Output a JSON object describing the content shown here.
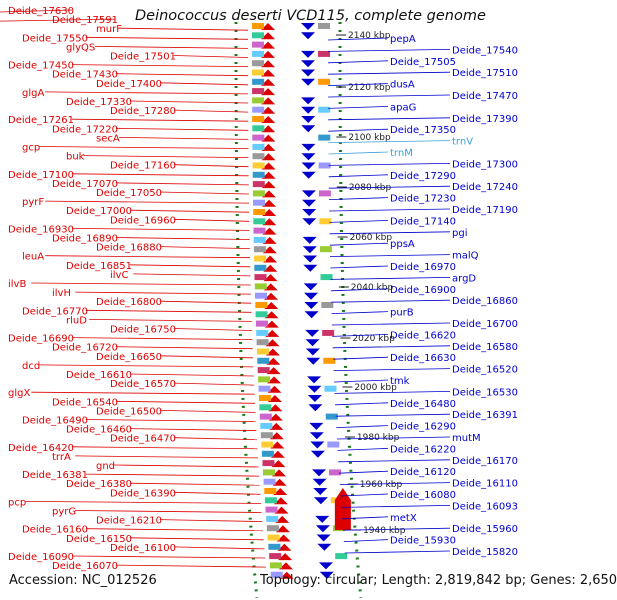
{
  "title": "Deinococcus deserti VCD115, complete genome",
  "footer": {
    "accession": "Accession: NC_012526",
    "topology": "Topology: circular; Length: 2,819,842 bp; Genes: 2,650"
  },
  "colors": {
    "forward": "#dd0000",
    "reverse": "#0000cc",
    "rna": "#3aa0d8",
    "ticks": "#1a7a1a"
  },
  "ticks": [
    "2140 kbp",
    "2120 kbp",
    "2100 kbp",
    "2080 kbp",
    "2060 kbp",
    "2040 kbp",
    "2020 kbp",
    "2000 kbp",
    "1980 kbp",
    "1960 kbp",
    "1940 kbp"
  ],
  "left_labels": [
    "Deide_17630",
    "Deide_17591",
    "murF",
    "Deide_17550",
    "glyQS",
    "Deide_17501",
    "Deide_17450",
    "Deide_17430",
    "Deide_17400",
    "glgA",
    "Deide_17330",
    "Deide_17280",
    "Deide_17261",
    "Deide_17220",
    "secA",
    "gcp",
    "buk",
    "Deide_17160",
    "Deide_17100",
    "Deide_17070",
    "Deide_17050",
    "pyrF",
    "Deide_17000",
    "Deide_16960",
    "Deide_16930",
    "Deide_16890",
    "Deide_16880",
    "leuA",
    "Deide_16851",
    "ilvC",
    "ilvB",
    "ilvH",
    "Deide_16800",
    "Deide_16770",
    "rluD",
    "Deide_16750",
    "Deide_16690",
    "Deide_16720",
    "Deide_16650",
    "dcd",
    "Deide_16610",
    "Deide_16570",
    "glgX",
    "Deide_16540",
    "Deide_16500",
    "Deide_16490",
    "Deide_16460",
    "Deide_16470",
    "Deide_16420",
    "trrA",
    "gnd",
    "Deide_16381",
    "Deide_16380",
    "Deide_16390",
    "pcp",
    "pyrG",
    "Deide_16210",
    "Deide_16160",
    "Deide_16150",
    "Deide_16100",
    "Deide_16090",
    "Deide_16070"
  ],
  "right_labels": [
    "pepA",
    "Deide_17540",
    "Deide_17505",
    "Deide_17510",
    "dusA",
    "Deide_17470",
    "apaG",
    "Deide_17390",
    "Deide_17350",
    "trnV",
    "trnM",
    "Deide_17300",
    "Deide_17290",
    "Deide_17240",
    "Deide_17230",
    "Deide_17190",
    "Deide_17140",
    "pgi",
    "ppsA",
    "malQ",
    "Deide_16970",
    "argD",
    "Deide_16900",
    "Deide_16860",
    "purB",
    "Deide_16700",
    "Deide_16620",
    "Deide_16580",
    "Deide_16630",
    "Deide_16520",
    "tmk",
    "Deide_16530",
    "Deide_16480",
    "Deide_16391",
    "Deide_16290",
    "mutM",
    "Deide_16220",
    "Deide_16170",
    "Deide_16120",
    "Deide_16110",
    "Deide_16080",
    "Deide_16093",
    "metX",
    "Deide_15960",
    "Deide_15930",
    "Deide_15820"
  ]
}
